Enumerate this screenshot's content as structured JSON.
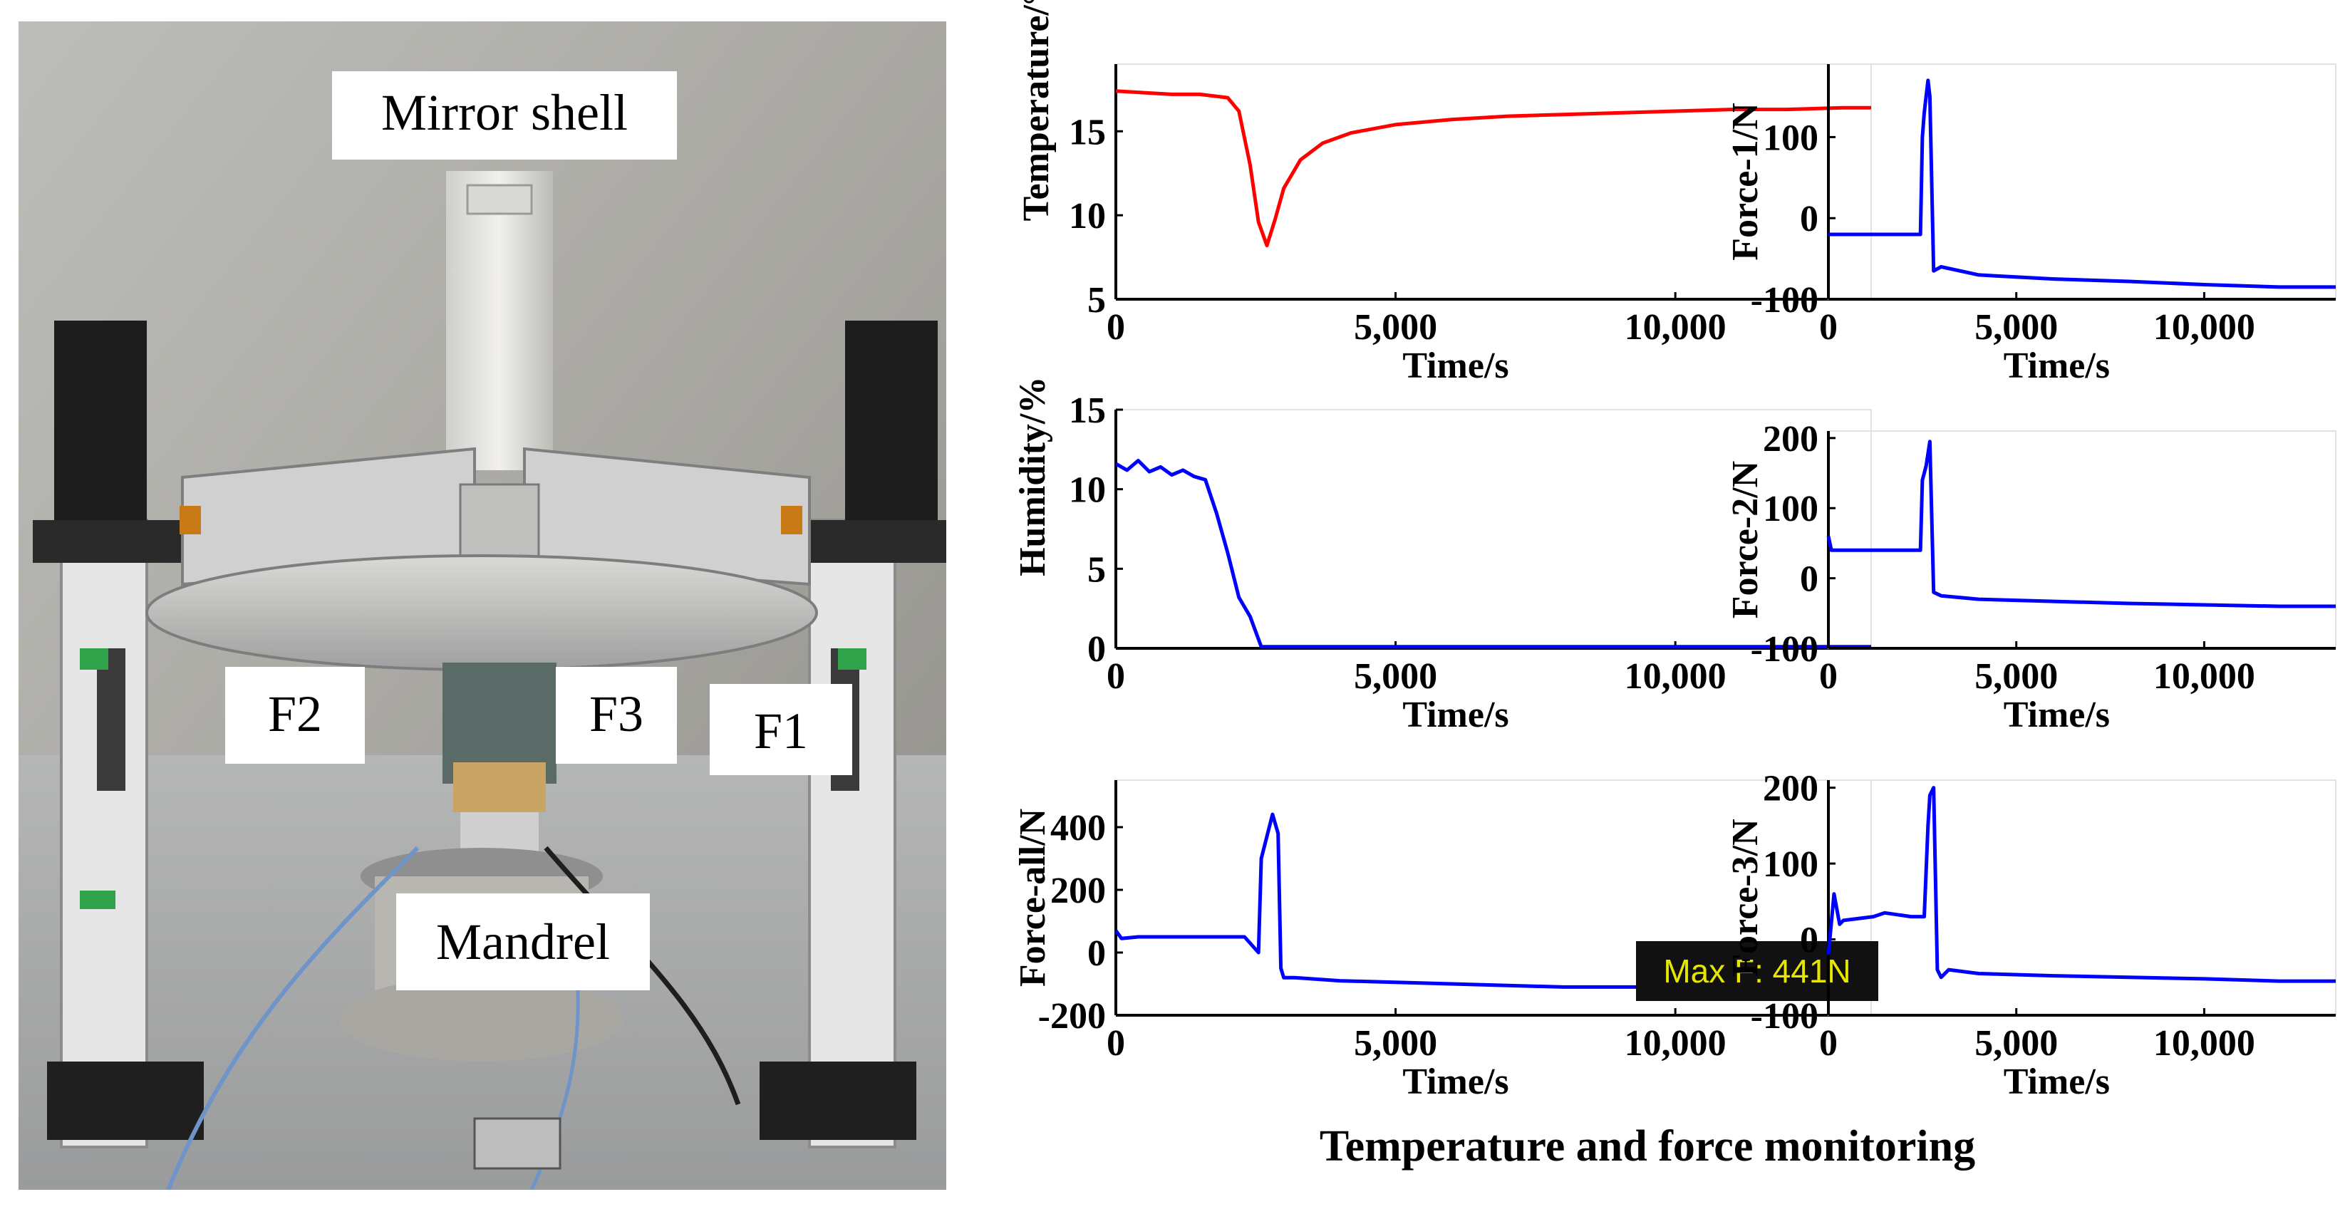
{
  "photo": {
    "labels": {
      "mirror_shell": "Mirror shell",
      "f1": "F1",
      "f2": "F2",
      "f3": "F3",
      "mandrel": "Mandrel"
    }
  },
  "caption": "Temperature and force monitoring",
  "chart_data": [
    {
      "type": "line",
      "id": "temperature",
      "ylabel": "Temperature/°C",
      "xlabel": "Time/s",
      "xlim": [
        0,
        13500
      ],
      "ylim": [
        5,
        19
      ],
      "xticks": [
        0,
        5000,
        10000
      ],
      "xtick_labels": [
        "0",
        "5,000",
        "10,000"
      ],
      "yticks": [
        5,
        10,
        15
      ],
      "ytick_labels": [
        "5",
        "10",
        "15"
      ],
      "color": "#ff0000",
      "x": [
        0,
        500,
        1000,
        1500,
        2000,
        2200,
        2400,
        2550,
        2700,
        2850,
        3000,
        3300,
        3700,
        4200,
        5000,
        6000,
        7000,
        8000,
        9000,
        10000,
        11000,
        12000,
        13000,
        13500
      ],
      "y": [
        17.4,
        17.3,
        17.2,
        17.2,
        17.0,
        16.2,
        13.0,
        9.6,
        8.2,
        9.8,
        11.6,
        13.3,
        14.3,
        14.9,
        15.4,
        15.7,
        15.9,
        16.0,
        16.1,
        16.2,
        16.3,
        16.3,
        16.4,
        16.4
      ]
    },
    {
      "type": "line",
      "id": "humidity",
      "ylabel": "Humidity/%",
      "xlabel": "Time/s",
      "xlim": [
        0,
        13500
      ],
      "ylim": [
        0,
        15
      ],
      "xticks": [
        0,
        5000,
        10000
      ],
      "xtick_labels": [
        "0",
        "5,000",
        "10,000"
      ],
      "yticks": [
        0,
        5,
        10,
        15
      ],
      "ytick_labels": [
        "0",
        "5",
        "10",
        "15"
      ],
      "color": "#0000ff",
      "x": [
        0,
        200,
        400,
        600,
        800,
        1000,
        1200,
        1400,
        1600,
        1800,
        2000,
        2200,
        2400,
        2600,
        3000,
        5000,
        8000,
        11000,
        13500
      ],
      "y": [
        11.6,
        11.2,
        11.8,
        11.1,
        11.4,
        10.9,
        11.2,
        10.8,
        10.6,
        8.5,
        6.0,
        3.2,
        2.0,
        0.1,
        0.1,
        0.1,
        0.1,
        0.1,
        0.1
      ]
    },
    {
      "type": "line",
      "id": "force-all",
      "ylabel": "Force-all/N",
      "xlabel": "Time/s",
      "xlim": [
        0,
        13500
      ],
      "ylim": [
        -200,
        550
      ],
      "xticks": [
        0,
        5000,
        10000
      ],
      "xtick_labels": [
        "0",
        "5,000",
        "10,000"
      ],
      "yticks": [
        -200,
        0,
        200,
        400
      ],
      "ytick_labels": [
        "-200",
        "0",
        "200",
        "400"
      ],
      "color": "#0000ff",
      "annotation": "Max F: 441N",
      "x": [
        0,
        100,
        400,
        1000,
        1800,
        2300,
        2550,
        2600,
        2800,
        2900,
        2950,
        3000,
        3200,
        4000,
        6000,
        8000,
        10000,
        12000,
        13500
      ],
      "y": [
        70,
        45,
        50,
        50,
        50,
        50,
        0,
        300,
        441,
        380,
        -50,
        -80,
        -80,
        -90,
        -100,
        -110,
        -110,
        -115,
        -115
      ]
    },
    {
      "type": "line",
      "id": "force-1",
      "ylabel": "Force-1/N",
      "xlabel": "Time/s",
      "xlim": [
        0,
        13500
      ],
      "ylim": [
        -100,
        190
      ],
      "xticks": [
        0,
        5000,
        10000
      ],
      "xtick_labels": [
        "0",
        "5,000",
        "10,000"
      ],
      "yticks": [
        -100,
        0,
        100
      ],
      "ytick_labels": [
        "-100",
        "0",
        "100"
      ],
      "color": "#0000ff",
      "x": [
        0,
        500,
        1000,
        1500,
        2000,
        2450,
        2500,
        2550,
        2650,
        2700,
        2800,
        3000,
        4000,
        6000,
        8000,
        10000,
        12000,
        13500
      ],
      "y": [
        -20,
        -20,
        -20,
        -20,
        -20,
        -20,
        100,
        130,
        170,
        150,
        -65,
        -60,
        -70,
        -75,
        -78,
        -82,
        -85,
        -85
      ]
    },
    {
      "type": "line",
      "id": "force-2",
      "ylabel": "Force-2/N",
      "xlabel": "Time/s",
      "xlim": [
        0,
        13500
      ],
      "ylim": [
        -100,
        210
      ],
      "xticks": [
        0,
        5000,
        10000
      ],
      "xtick_labels": [
        "0",
        "5,000",
        "10,000"
      ],
      "yticks": [
        -100,
        0,
        100,
        200
      ],
      "ytick_labels": [
        "-100",
        "0",
        "100",
        "200"
      ],
      "color": "#0000ff",
      "x": [
        0,
        80,
        200,
        1000,
        2000,
        2450,
        2500,
        2600,
        2700,
        2800,
        3000,
        4000,
        6000,
        8000,
        10000,
        12000,
        13500
      ],
      "y": [
        60,
        40,
        40,
        40,
        40,
        40,
        140,
        160,
        195,
        -20,
        -25,
        -30,
        -33,
        -36,
        -38,
        -40,
        -40
      ]
    },
    {
      "type": "line",
      "id": "force-3",
      "ylabel": "Force-3/N",
      "xlabel": "Time/s",
      "xlim": [
        0,
        13500
      ],
      "ylim": [
        -100,
        210
      ],
      "xticks": [
        0,
        5000,
        10000
      ],
      "xtick_labels": [
        "0",
        "5,000",
        "10,000"
      ],
      "yticks": [
        -100,
        0,
        100,
        200
      ],
      "ytick_labels": [
        "-100",
        "0",
        "100",
        "200"
      ],
      "color": "#0000ff",
      "x": [
        0,
        150,
        300,
        400,
        1200,
        1500,
        2200,
        2550,
        2650,
        2700,
        2800,
        2900,
        3000,
        3200,
        4000,
        6000,
        8000,
        10000,
        12000,
        13500
      ],
      "y": [
        -20,
        60,
        20,
        25,
        30,
        35,
        30,
        30,
        150,
        190,
        200,
        -40,
        -50,
        -40,
        -45,
        -48,
        -50,
        -52,
        -55,
        -55
      ]
    }
  ]
}
